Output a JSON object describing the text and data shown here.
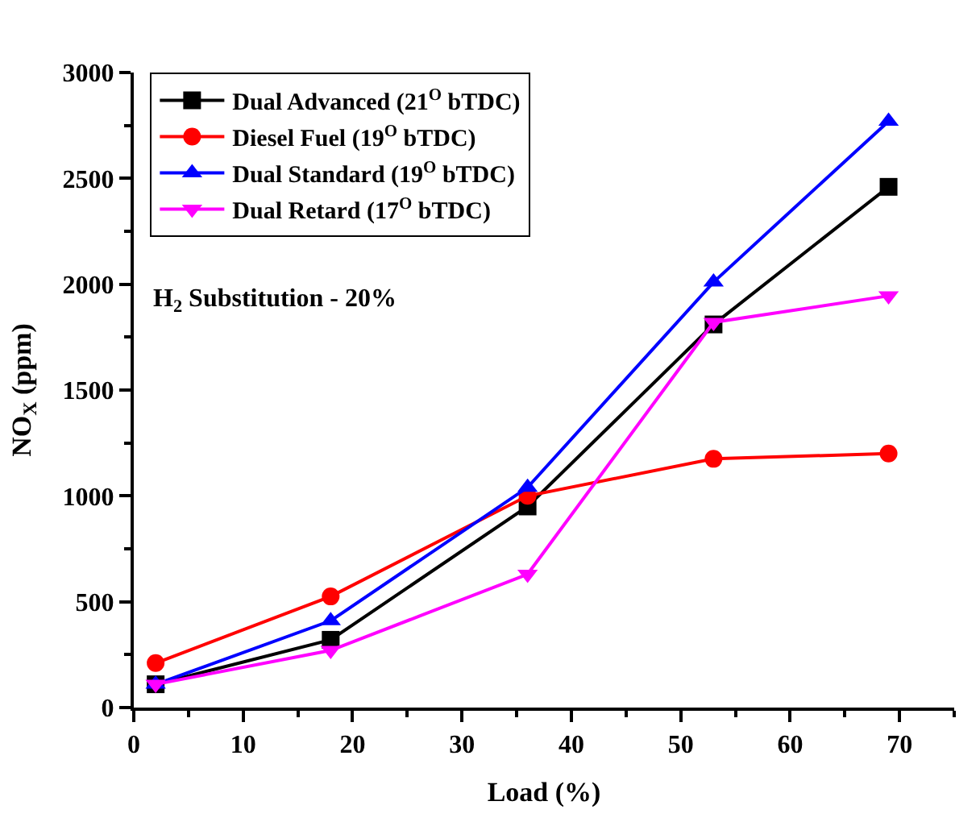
{
  "chart_data": {
    "type": "line",
    "xlabel": "Load (%)",
    "ylabel": "NO$_{X}$ (ppm)",
    "x": [
      2,
      18,
      36,
      53,
      69
    ],
    "series": [
      {
        "name": "Dual Advanced (21$^{O}$ bTDC)",
        "color": "#000000",
        "marker": "square",
        "values": [
          110,
          320,
          950,
          1810,
          2460
        ]
      },
      {
        "name": "Diesel Fuel (19$^{O}$ bTDC)",
        "color": "#ff0000",
        "marker": "circle",
        "values": [
          210,
          525,
          1000,
          1175,
          1200
        ]
      },
      {
        "name": "Dual Standard (19$^{O}$ bTDC)",
        "color": "#0000ff",
        "marker": "triangle",
        "values": [
          110,
          410,
          1040,
          2010,
          2770
        ]
      },
      {
        "name": "Dual Retard (17$^{O}$ bTDC)",
        "color": "#ff00ff",
        "marker": "triangle-down",
        "values": [
          110,
          270,
          630,
          1820,
          1945
        ]
      }
    ],
    "xlim": [
      0,
      75
    ],
    "xticks": [
      0,
      10,
      20,
      30,
      40,
      50,
      60,
      70
    ],
    "ylim": [
      0,
      3000
    ],
    "yticks": [
      0,
      500,
      1000,
      1500,
      2000,
      2500,
      3000
    ],
    "grid": false,
    "legend": "top left",
    "line_style": "solid",
    "annotations": [
      "H$_{2}$ Substitution - 20%"
    ]
  }
}
